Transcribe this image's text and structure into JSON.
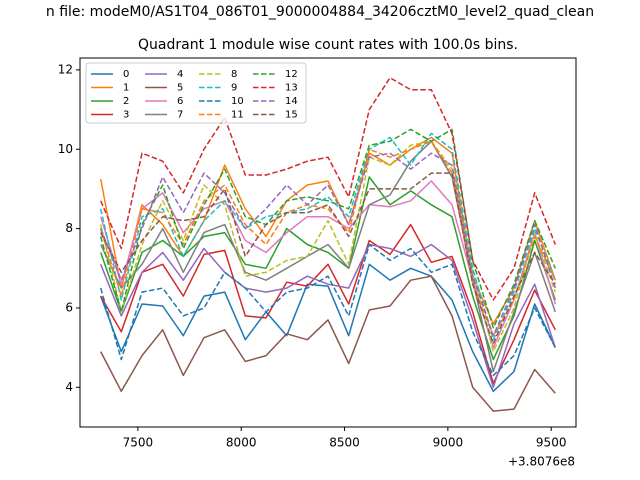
{
  "chart_data": {
    "type": "line",
    "suptitle": "n file: modeM0/AS1T04_086T01_9000004884_34206cztM0_level2_quad_clean",
    "title": "Quadrant 1 module wise count rates with 100.0s bins.",
    "xlabel": "",
    "ylabel": "",
    "x_offset_label": "+3.8076e8",
    "xlim": [
      7220,
      9620
    ],
    "ylim": [
      3.0,
      12.3
    ],
    "xticks": [
      7500,
      8000,
      8500,
      9000,
      9500
    ],
    "yticks": [
      4,
      6,
      8,
      10,
      12
    ],
    "legend_position": "top-left",
    "legend_columns": 4,
    "x": [
      7320,
      7420,
      7520,
      7620,
      7720,
      7820,
      7920,
      8020,
      8120,
      8220,
      8320,
      8420,
      8520,
      8620,
      8720,
      8820,
      8920,
      9020,
      9120,
      9220,
      9320,
      9420,
      9520
    ],
    "series": [
      {
        "name": "0",
        "color": "#1f77b4",
        "dash": "solid",
        "values": [
          6.3,
          4.9,
          6.1,
          6.05,
          5.3,
          6.3,
          6.4,
          5.2,
          5.9,
          5.3,
          6.6,
          6.55,
          5.3,
          7.1,
          6.7,
          7.0,
          6.8,
          6.2,
          4.9,
          3.9,
          4.4,
          6.1,
          5.0
        ]
      },
      {
        "name": "1",
        "color": "#ff7f0e",
        "dash": "solid",
        "values": [
          9.25,
          6.5,
          8.6,
          8.1,
          7.3,
          8.2,
          9.6,
          8.5,
          7.8,
          8.7,
          9.1,
          9.2,
          8.1,
          9.9,
          9.6,
          10.0,
          10.3,
          9.9,
          6.8,
          5.6,
          6.5,
          8.2,
          6.7
        ]
      },
      {
        "name": "2",
        "color": "#2ca02c",
        "dash": "solid",
        "values": [
          7.4,
          5.9,
          7.4,
          7.7,
          7.3,
          7.8,
          7.9,
          7.1,
          7.0,
          8.0,
          7.6,
          7.4,
          7.0,
          9.3,
          8.6,
          8.95,
          8.6,
          8.3,
          6.3,
          4.7,
          5.8,
          7.7,
          6.2
        ]
      },
      {
        "name": "3",
        "color": "#d62728",
        "dash": "solid",
        "values": [
          6.3,
          5.4,
          6.9,
          7.1,
          6.3,
          7.35,
          7.45,
          5.8,
          5.75,
          6.65,
          6.55,
          7.1,
          6.1,
          7.7,
          7.35,
          8.1,
          7.15,
          7.3,
          5.9,
          4.1,
          5.2,
          6.45,
          5.45
        ]
      },
      {
        "name": "4",
        "color": "#9467bd",
        "dash": "solid",
        "values": [
          7.1,
          5.8,
          6.9,
          7.4,
          6.7,
          7.5,
          6.9,
          6.5,
          6.4,
          6.5,
          6.8,
          6.6,
          6.5,
          7.6,
          7.5,
          7.3,
          7.6,
          7.2,
          5.7,
          4.0,
          5.6,
          6.6,
          5.0
        ]
      },
      {
        "name": "5",
        "color": "#8c564b",
        "dash": "solid",
        "values": [
          4.9,
          3.9,
          4.8,
          5.45,
          4.3,
          5.25,
          5.45,
          4.65,
          4.8,
          5.35,
          5.2,
          5.7,
          4.6,
          5.95,
          6.05,
          6.7,
          6.8,
          5.8,
          4.0,
          3.4,
          3.45,
          4.45,
          3.85
        ]
      },
      {
        "name": "6",
        "color": "#e377c2",
        "dash": "solid",
        "values": [
          8.3,
          6.6,
          8.5,
          8.9,
          7.9,
          8.5,
          8.7,
          7.7,
          7.4,
          7.9,
          8.3,
          8.3,
          8.0,
          8.6,
          8.55,
          8.7,
          9.2,
          8.6,
          6.7,
          5.0,
          6.2,
          7.9,
          6.1
        ]
      },
      {
        "name": "7",
        "color": "#7f7f7f",
        "dash": "solid",
        "values": [
          7.6,
          6.5,
          7.1,
          8.0,
          6.9,
          7.9,
          8.1,
          6.9,
          6.7,
          7.0,
          7.3,
          7.6,
          7.0,
          8.6,
          8.85,
          9.7,
          10.2,
          9.3,
          6.7,
          4.4,
          5.9,
          7.4,
          5.9
        ]
      },
      {
        "name": "8",
        "color": "#bcbd22",
        "dash": "dashed",
        "values": [
          8.1,
          5.9,
          7.6,
          8.7,
          7.7,
          9.1,
          8.6,
          6.8,
          6.9,
          7.2,
          7.3,
          8.2,
          7.1,
          9.8,
          9.6,
          10.1,
          10.2,
          9.5,
          6.9,
          4.9,
          6.0,
          7.9,
          6.4
        ]
      },
      {
        "name": "9",
        "color": "#17becf",
        "dash": "dashed",
        "values": [
          8.5,
          6.2,
          8.3,
          8.5,
          7.3,
          8.2,
          8.7,
          8.0,
          8.3,
          8.4,
          8.5,
          8.8,
          8.3,
          10.0,
          10.3,
          9.6,
          10.4,
          10.0,
          7.0,
          5.2,
          6.4,
          8.0,
          6.7
        ]
      },
      {
        "name": "10",
        "color": "#1f77b4",
        "dash": "dashed",
        "values": [
          6.5,
          4.7,
          6.4,
          6.5,
          5.8,
          6.0,
          6.9,
          6.5,
          5.9,
          6.4,
          6.5,
          6.8,
          5.8,
          7.6,
          7.2,
          7.5,
          6.9,
          7.1,
          5.4,
          4.3,
          4.8,
          6.0,
          5.0
        ]
      },
      {
        "name": "11",
        "color": "#ff7f0e",
        "dash": "dashed",
        "values": [
          8.0,
          6.3,
          8.5,
          8.4,
          7.6,
          8.7,
          9.1,
          8.1,
          7.6,
          8.4,
          8.6,
          8.5,
          7.9,
          10.0,
          9.8,
          10.0,
          10.2,
          9.4,
          6.6,
          5.3,
          6.2,
          7.8,
          6.7
        ]
      },
      {
        "name": "12",
        "color": "#2ca02c",
        "dash": "dashed",
        "values": [
          7.8,
          5.9,
          8.1,
          9.1,
          7.5,
          8.6,
          9.5,
          8.3,
          8.1,
          8.7,
          8.8,
          8.7,
          8.5,
          10.1,
          10.2,
          10.5,
          10.2,
          10.5,
          7.2,
          5.5,
          6.6,
          8.2,
          7.0
        ]
      },
      {
        "name": "13",
        "color": "#d62728",
        "dash": "dashed",
        "values": [
          8.7,
          7.5,
          9.9,
          9.7,
          8.9,
          10.0,
          10.8,
          9.35,
          9.35,
          9.5,
          9.7,
          9.8,
          8.8,
          11.0,
          11.8,
          11.5,
          11.5,
          10.4,
          7.2,
          6.2,
          7.0,
          8.9,
          7.6
        ]
      },
      {
        "name": "14",
        "color": "#9467bd",
        "dash": "dashed",
        "values": [
          8.0,
          6.7,
          8.0,
          9.3,
          8.4,
          9.4,
          8.9,
          8.0,
          8.5,
          9.1,
          8.6,
          9.1,
          8.1,
          9.8,
          9.9,
          9.5,
          9.9,
          9.6,
          6.8,
          5.3,
          6.5,
          8.1,
          6.5
        ]
      },
      {
        "name": "15",
        "color": "#8c564b",
        "dash": "dashed",
        "values": [
          7.9,
          6.9,
          7.7,
          8.3,
          8.2,
          8.3,
          9.0,
          7.3,
          8.1,
          8.4,
          8.4,
          8.6,
          7.8,
          9.0,
          9.0,
          9.0,
          9.4,
          9.4,
          6.6,
          5.1,
          6.3,
          7.4,
          6.6
        ]
      }
    ]
  }
}
